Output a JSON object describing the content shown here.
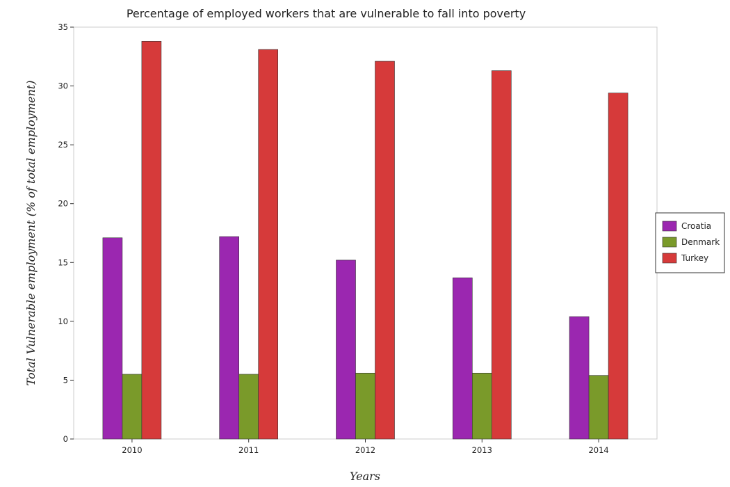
{
  "chart_data": {
    "type": "bar",
    "title": "Percentage of employed workers that are vulnerable to fall into poverty",
    "xlabel": "Years",
    "ylabel": "Total Vulnerable employment (% of total employment)",
    "categories": [
      "2010",
      "2011",
      "2012",
      "2013",
      "2014"
    ],
    "series": [
      {
        "name": "Croatia",
        "color": "#9b27b0",
        "values": [
          17.1,
          17.2,
          15.2,
          13.7,
          10.4
        ]
      },
      {
        "name": "Denmark",
        "color": "#7a9a2a",
        "values": [
          5.5,
          5.5,
          5.6,
          5.6,
          5.4
        ]
      },
      {
        "name": "Turkey",
        "color": "#d63a3a",
        "values": [
          33.8,
          33.1,
          32.1,
          31.3,
          29.4
        ]
      }
    ],
    "ylim": [
      0,
      35
    ],
    "yticks": [
      0,
      5,
      10,
      15,
      20,
      25,
      30,
      35
    ],
    "grid": false,
    "legend": "right"
  }
}
